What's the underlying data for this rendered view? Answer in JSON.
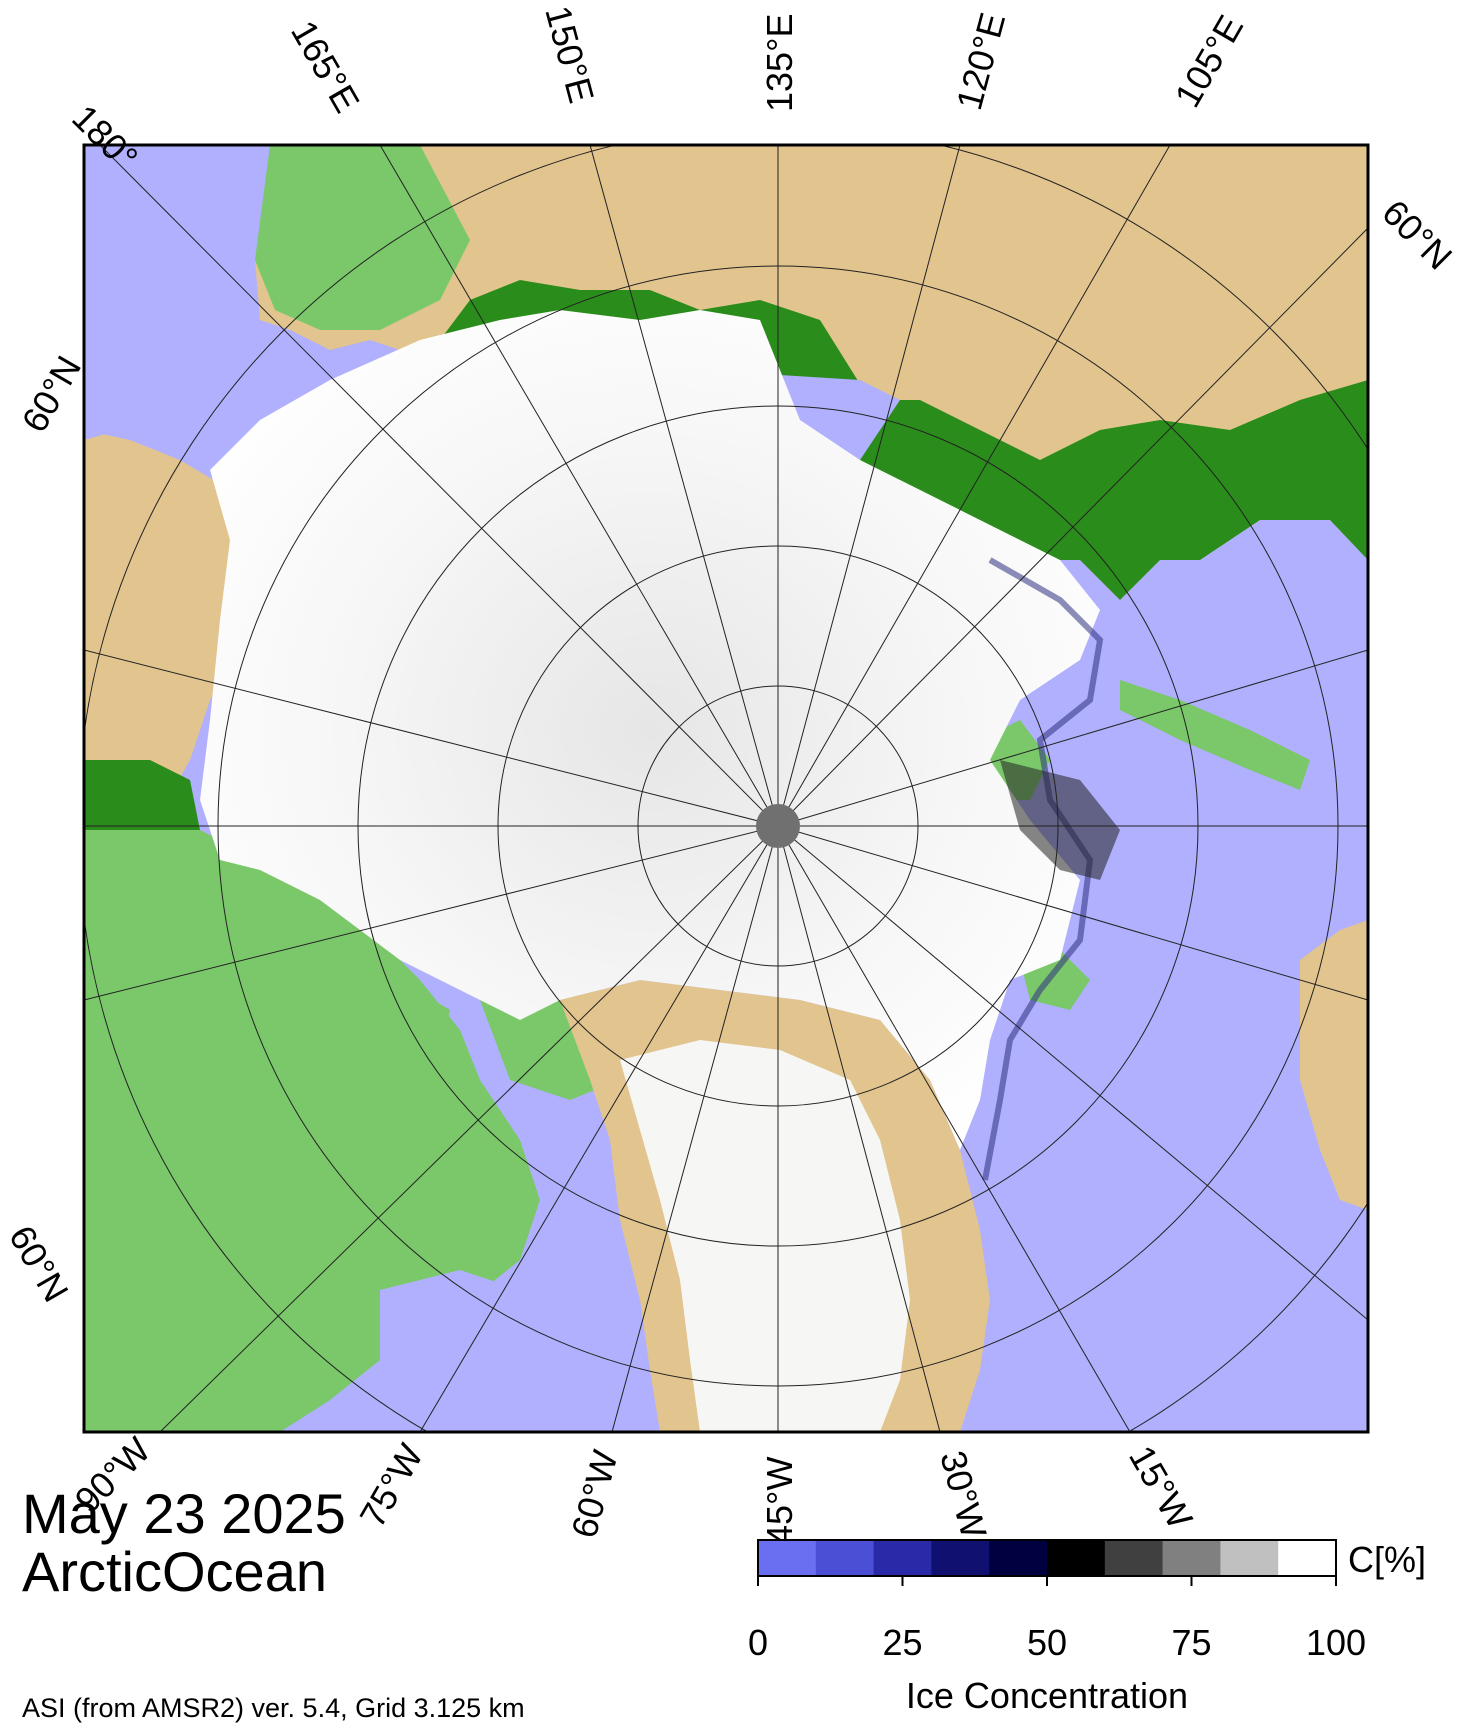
{
  "map": {
    "date": "May 23 2025",
    "region": "ArcticOcean",
    "source_note": "ASI (from AMSR2) ver. 5.4,  Grid 3.125 km",
    "colors": {
      "ocean": "#b0b0ff",
      "ice": "#ffffff",
      "pole_hole": "#707070",
      "low_land": "#2a8c1a",
      "mid_land": "#7ac86a",
      "high_land": "#e2c48e",
      "frame": "#000000"
    },
    "longitude_labels_top": [
      "180°",
      "165°E",
      "150°E",
      "135°E",
      "120°E",
      "105°E"
    ],
    "latitude_labels_left": [
      "60°N",
      "60°N"
    ],
    "latitude_labels_right": [
      "60°N"
    ],
    "longitude_labels_bottom": [
      "90°W",
      "75°W",
      "60°W",
      "45°W",
      "30°W",
      "15°W"
    ]
  },
  "colorbar": {
    "title": "Ice Concentration",
    "unit": "C[%]",
    "ticks": [
      "0",
      "25",
      "50",
      "75",
      "100"
    ],
    "range": [
      0,
      100
    ],
    "stops": [
      "#6a6ef0",
      "#4b4fd6",
      "#2a2aa8",
      "#101070",
      "#000040",
      "#000000",
      "#404040",
      "#808080",
      "#c0c0c0",
      "#ffffff"
    ]
  }
}
